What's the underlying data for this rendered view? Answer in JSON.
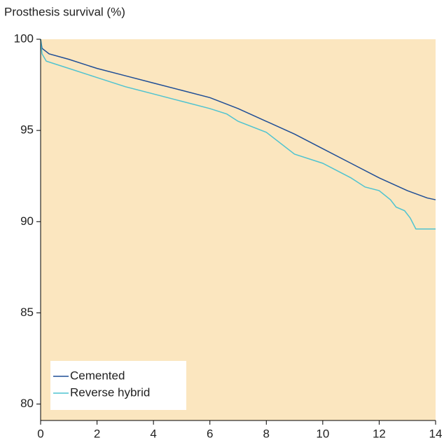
{
  "chart_data": {
    "type": "line",
    "y_label": "Prosthesis survival (%)",
    "xlim": [
      0,
      14
    ],
    "xticks": [
      0,
      2,
      4,
      6,
      8,
      10,
      12,
      14
    ],
    "ylim": [
      79.1,
      100
    ],
    "yticks": [
      80,
      85,
      90,
      95,
      100
    ],
    "background": "#fbe6bf",
    "legend": "lower left",
    "series": [
      {
        "name": "Cemented",
        "color": "#1f4e96",
        "x": [
          0,
          0.05,
          0.3,
          1,
          2,
          3,
          4,
          5,
          6,
          7,
          8,
          9,
          10,
          11,
          12,
          13,
          13.7,
          14
        ],
        "values": [
          100,
          99.5,
          99.2,
          98.9,
          98.4,
          98.0,
          97.6,
          97.2,
          96.8,
          96.2,
          95.5,
          94.8,
          94.0,
          93.2,
          92.4,
          91.7,
          91.3,
          91.2
        ]
      },
      {
        "name": "Reverse hybrid",
        "color": "#4fc3d0",
        "x": [
          0,
          0.05,
          0.2,
          1,
          2,
          3,
          4,
          5,
          6,
          6.6,
          7,
          8,
          9,
          10,
          11,
          11.5,
          12,
          12.4,
          12.6,
          12.9,
          13.1,
          13.3,
          14
        ],
        "values": [
          100,
          99.2,
          98.8,
          98.4,
          97.9,
          97.4,
          97.0,
          96.6,
          96.2,
          95.9,
          95.5,
          94.9,
          93.7,
          93.2,
          92.4,
          91.9,
          91.7,
          91.2,
          90.8,
          90.6,
          90.2,
          89.6,
          89.6
        ]
      }
    ]
  }
}
